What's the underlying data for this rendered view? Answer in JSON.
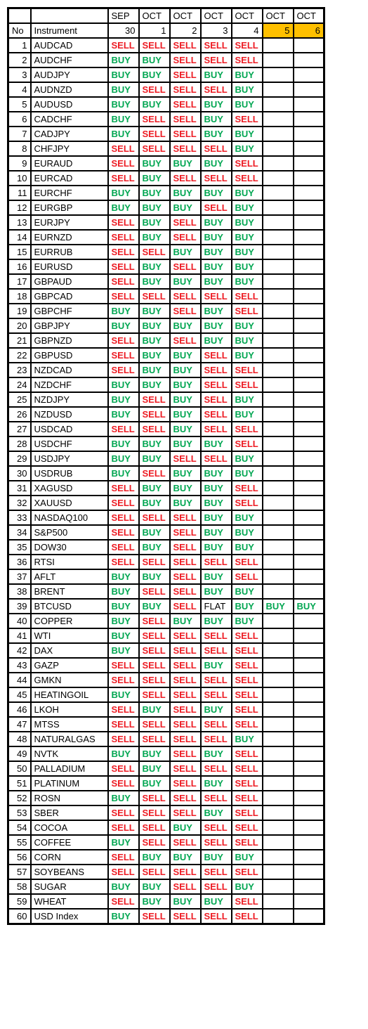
{
  "header": {
    "no_label": "No",
    "inst_label": "Instrument",
    "months": [
      "SEP",
      "OCT",
      "OCT",
      "OCT",
      "OCT",
      "OCT",
      "OCT"
    ],
    "days": [
      "30",
      "1",
      "2",
      "3",
      "4",
      "5",
      "6"
    ],
    "highlight_idx": [
      5,
      6
    ]
  },
  "colors": {
    "buy": "#00a651",
    "sell": "#ed1c24",
    "flat": "#000000",
    "highlight_bg": "#ffc000",
    "border": "#000000",
    "bg": "#ffffff"
  },
  "rows": [
    {
      "no": 1,
      "inst": "AUDCAD",
      "sig": [
        "SELL",
        "SELL",
        "SELL",
        "SELL",
        "SELL",
        "",
        ""
      ]
    },
    {
      "no": 2,
      "inst": "AUDCHF",
      "sig": [
        "BUY",
        "BUY",
        "SELL",
        "SELL",
        "SELL",
        "",
        ""
      ]
    },
    {
      "no": 3,
      "inst": "AUDJPY",
      "sig": [
        "BUY",
        "BUY",
        "SELL",
        "BUY",
        "BUY",
        "",
        ""
      ]
    },
    {
      "no": 4,
      "inst": "AUDNZD",
      "sig": [
        "BUY",
        "SELL",
        "SELL",
        "SELL",
        "BUY",
        "",
        ""
      ]
    },
    {
      "no": 5,
      "inst": "AUDUSD",
      "sig": [
        "BUY",
        "BUY",
        "SELL",
        "BUY",
        "BUY",
        "",
        ""
      ]
    },
    {
      "no": 6,
      "inst": "CADCHF",
      "sig": [
        "BUY",
        "SELL",
        "SELL",
        "BUY",
        "SELL",
        "",
        ""
      ]
    },
    {
      "no": 7,
      "inst": "CADJPY",
      "sig": [
        "BUY",
        "SELL",
        "SELL",
        "BUY",
        "BUY",
        "",
        ""
      ]
    },
    {
      "no": 8,
      "inst": "CHFJPY",
      "sig": [
        "SELL",
        "SELL",
        "SELL",
        "SELL",
        "BUY",
        "",
        ""
      ]
    },
    {
      "no": 9,
      "inst": "EURAUD",
      "sig": [
        "SELL",
        "BUY",
        "BUY",
        "BUY",
        "SELL",
        "",
        ""
      ]
    },
    {
      "no": 10,
      "inst": "EURCAD",
      "sig": [
        "SELL",
        "BUY",
        "SELL",
        "SELL",
        "SELL",
        "",
        ""
      ]
    },
    {
      "no": 11,
      "inst": "EURCHF",
      "sig": [
        "BUY",
        "BUY",
        "BUY",
        "BUY",
        "BUY",
        "",
        ""
      ]
    },
    {
      "no": 12,
      "inst": "EURGBP",
      "sig": [
        "BUY",
        "BUY",
        "BUY",
        "SELL",
        "BUY",
        "",
        ""
      ]
    },
    {
      "no": 13,
      "inst": "EURJPY",
      "sig": [
        "SELL",
        "BUY",
        "SELL",
        "BUY",
        "BUY",
        "",
        ""
      ]
    },
    {
      "no": 14,
      "inst": "EURNZD",
      "sig": [
        "SELL",
        "BUY",
        "SELL",
        "BUY",
        "BUY",
        "",
        ""
      ]
    },
    {
      "no": 15,
      "inst": "EURRUB",
      "sig": [
        "SELL",
        "SELL",
        "BUY",
        "BUY",
        "BUY",
        "",
        ""
      ]
    },
    {
      "no": 16,
      "inst": "EURUSD",
      "sig": [
        "SELL",
        "BUY",
        "SELL",
        "BUY",
        "BUY",
        "",
        ""
      ]
    },
    {
      "no": 17,
      "inst": "GBPAUD",
      "sig": [
        "SELL",
        "BUY",
        "BUY",
        "BUY",
        "BUY",
        "",
        ""
      ]
    },
    {
      "no": 18,
      "inst": "GBPCAD",
      "sig": [
        "SELL",
        "SELL",
        "SELL",
        "SELL",
        "SELL",
        "",
        ""
      ]
    },
    {
      "no": 19,
      "inst": "GBPCHF",
      "sig": [
        "BUY",
        "BUY",
        "SELL",
        "BUY",
        "SELL",
        "",
        ""
      ]
    },
    {
      "no": 20,
      "inst": "GBPJPY",
      "sig": [
        "BUY",
        "BUY",
        "BUY",
        "BUY",
        "BUY",
        "",
        ""
      ]
    },
    {
      "no": 21,
      "inst": "GBPNZD",
      "sig": [
        "SELL",
        "BUY",
        "SELL",
        "BUY",
        "BUY",
        "",
        ""
      ]
    },
    {
      "no": 22,
      "inst": "GBPUSD",
      "sig": [
        "SELL",
        "BUY",
        "BUY",
        "SELL",
        "BUY",
        "",
        ""
      ]
    },
    {
      "no": 23,
      "inst": "NZDCAD",
      "sig": [
        "SELL",
        "BUY",
        "BUY",
        "SELL",
        "SELL",
        "",
        ""
      ]
    },
    {
      "no": 24,
      "inst": "NZDCHF",
      "sig": [
        "BUY",
        "BUY",
        "BUY",
        "SELL",
        "SELL",
        "",
        ""
      ]
    },
    {
      "no": 25,
      "inst": "NZDJPY",
      "sig": [
        "BUY",
        "SELL",
        "BUY",
        "SELL",
        "BUY",
        "",
        ""
      ]
    },
    {
      "no": 26,
      "inst": "NZDUSD",
      "sig": [
        "BUY",
        "SELL",
        "BUY",
        "SELL",
        "BUY",
        "",
        ""
      ]
    },
    {
      "no": 27,
      "inst": "USDCAD",
      "sig": [
        "SELL",
        "SELL",
        "BUY",
        "SELL",
        "SELL",
        "",
        ""
      ]
    },
    {
      "no": 28,
      "inst": "USDCHF",
      "sig": [
        "BUY",
        "BUY",
        "BUY",
        "BUY",
        "SELL",
        "",
        ""
      ]
    },
    {
      "no": 29,
      "inst": "USDJPY",
      "sig": [
        "BUY",
        "BUY",
        "SELL",
        "SELL",
        "BUY",
        "",
        ""
      ]
    },
    {
      "no": 30,
      "inst": "USDRUB",
      "sig": [
        "BUY",
        "SELL",
        "BUY",
        "BUY",
        "BUY",
        "",
        ""
      ]
    },
    {
      "no": 31,
      "inst": "XAGUSD",
      "sig": [
        "SELL",
        "BUY",
        "BUY",
        "BUY",
        "SELL",
        "",
        ""
      ]
    },
    {
      "no": 32,
      "inst": "XAUUSD",
      "sig": [
        "SELL",
        "BUY",
        "BUY",
        "BUY",
        "SELL",
        "",
        ""
      ]
    },
    {
      "no": 33,
      "inst": "NASDAQ100",
      "sig": [
        "SELL",
        "SELL",
        "SELL",
        "BUY",
        "BUY",
        "",
        ""
      ]
    },
    {
      "no": 34,
      "inst": "S&P500",
      "sig": [
        "SELL",
        "BUY",
        "SELL",
        "BUY",
        "BUY",
        "",
        ""
      ]
    },
    {
      "no": 35,
      "inst": "DOW30",
      "sig": [
        "SELL",
        "BUY",
        "SELL",
        "BUY",
        "BUY",
        "",
        ""
      ]
    },
    {
      "no": 36,
      "inst": "RTSI",
      "sig": [
        "SELL",
        "SELL",
        "SELL",
        "SELL",
        "SELL",
        "",
        ""
      ]
    },
    {
      "no": 37,
      "inst": "AFLT",
      "sig": [
        "BUY",
        "BUY",
        "SELL",
        "BUY",
        "SELL",
        "",
        ""
      ]
    },
    {
      "no": 38,
      "inst": "BRENT",
      "sig": [
        "BUY",
        "SELL",
        "SELL",
        "BUY",
        "BUY",
        "",
        ""
      ]
    },
    {
      "no": 39,
      "inst": "BTCUSD",
      "sig": [
        "BUY",
        "BUY",
        "SELL",
        "FLAT",
        "BUY",
        "BUY",
        "BUY"
      ]
    },
    {
      "no": 40,
      "inst": "COPPER",
      "sig": [
        "BUY",
        "SELL",
        "BUY",
        "BUY",
        "BUY",
        "",
        ""
      ]
    },
    {
      "no": 41,
      "inst": "WTI",
      "sig": [
        "BUY",
        "SELL",
        "SELL",
        "SELL",
        "SELL",
        "",
        ""
      ]
    },
    {
      "no": 42,
      "inst": "DAX",
      "sig": [
        "BUY",
        "SELL",
        "SELL",
        "SELL",
        "SELL",
        "",
        ""
      ]
    },
    {
      "no": 43,
      "inst": "GAZP",
      "sig": [
        "SELL",
        "SELL",
        "SELL",
        "BUY",
        "SELL",
        "",
        ""
      ]
    },
    {
      "no": 44,
      "inst": "GMKN",
      "sig": [
        "SELL",
        "SELL",
        "SELL",
        "SELL",
        "SELL",
        "",
        ""
      ]
    },
    {
      "no": 45,
      "inst": "HEATINGOIL",
      "sig": [
        "BUY",
        "SELL",
        "SELL",
        "SELL",
        "SELL",
        "",
        ""
      ]
    },
    {
      "no": 46,
      "inst": "LKOH",
      "sig": [
        "SELL",
        "BUY",
        "SELL",
        "BUY",
        "SELL",
        "",
        ""
      ]
    },
    {
      "no": 47,
      "inst": "MTSS",
      "sig": [
        "SELL",
        "SELL",
        "SELL",
        "SELL",
        "SELL",
        "",
        ""
      ]
    },
    {
      "no": 48,
      "inst": "NATURALGAS",
      "sig": [
        "SELL",
        "SELL",
        "SELL",
        "SELL",
        "BUY",
        "",
        ""
      ]
    },
    {
      "no": 49,
      "inst": "NVTK",
      "sig": [
        "BUY",
        "BUY",
        "SELL",
        "BUY",
        "SELL",
        "",
        ""
      ]
    },
    {
      "no": 50,
      "inst": "PALLADIUM",
      "sig": [
        "SELL",
        "BUY",
        "SELL",
        "SELL",
        "SELL",
        "",
        ""
      ]
    },
    {
      "no": 51,
      "inst": "PLATINUM",
      "sig": [
        "SELL",
        "BUY",
        "SELL",
        "BUY",
        "SELL",
        "",
        ""
      ]
    },
    {
      "no": 52,
      "inst": "ROSN",
      "sig": [
        "BUY",
        "SELL",
        "SELL",
        "SELL",
        "SELL",
        "",
        ""
      ]
    },
    {
      "no": 53,
      "inst": "SBER",
      "sig": [
        "SELL",
        "SELL",
        "SELL",
        "BUY",
        "SELL",
        "",
        ""
      ]
    },
    {
      "no": 54,
      "inst": "COCOA",
      "sig": [
        "SELL",
        "SELL",
        "BUY",
        "SELL",
        "SELL",
        "",
        ""
      ]
    },
    {
      "no": 55,
      "inst": "COFFEE",
      "sig": [
        "BUY",
        "SELL",
        "SELL",
        "SELL",
        "SELL",
        "",
        ""
      ]
    },
    {
      "no": 56,
      "inst": "CORN",
      "sig": [
        "SELL",
        "BUY",
        "BUY",
        "BUY",
        "BUY",
        "",
        ""
      ]
    },
    {
      "no": 57,
      "inst": "SOYBEANS",
      "sig": [
        "SELL",
        "SELL",
        "SELL",
        "SELL",
        "SELL",
        "",
        ""
      ]
    },
    {
      "no": 58,
      "inst": "SUGAR",
      "sig": [
        "BUY",
        "BUY",
        "SELL",
        "SELL",
        "BUY",
        "",
        ""
      ]
    },
    {
      "no": 59,
      "inst": "WHEAT",
      "sig": [
        "SELL",
        "BUY",
        "BUY",
        "BUY",
        "SELL",
        "",
        ""
      ]
    },
    {
      "no": 60,
      "inst": "USD Index",
      "sig": [
        "BUY",
        "SELL",
        "SELL",
        "SELL",
        "SELL",
        "",
        ""
      ]
    }
  ]
}
